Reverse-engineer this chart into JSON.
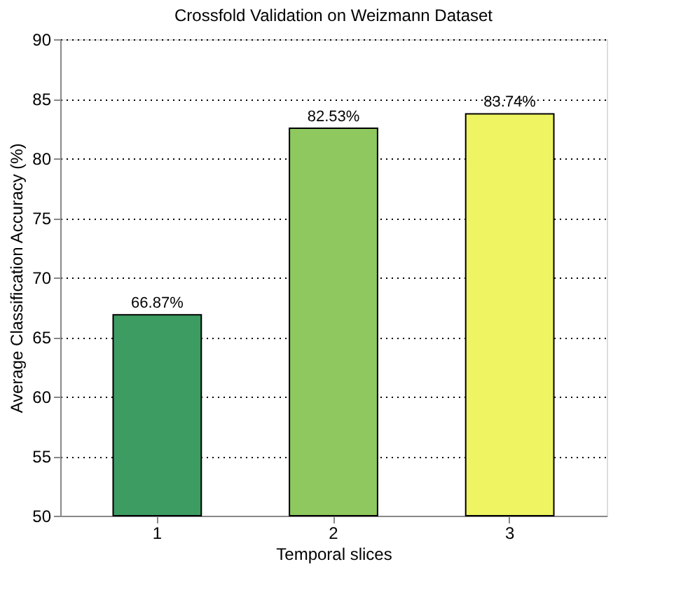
{
  "chart_data": {
    "type": "bar",
    "title": "Crossfold Validation on Weizmann Dataset",
    "xlabel": "Temporal slices",
    "ylabel": "Average Classification Accuracy (%)",
    "categories": [
      "1",
      "2",
      "3"
    ],
    "values": [
      66.87,
      82.53,
      83.74
    ],
    "colors": [
      "#3d9c62",
      "#8ec85e",
      "#eef462"
    ],
    "value_labels": [
      "66.87%",
      "82.53%",
      "83.74%"
    ],
    "ylim": [
      50,
      90
    ],
    "yticks": [
      50,
      55,
      60,
      65,
      70,
      75,
      80,
      85,
      90
    ],
    "grid": "y"
  }
}
